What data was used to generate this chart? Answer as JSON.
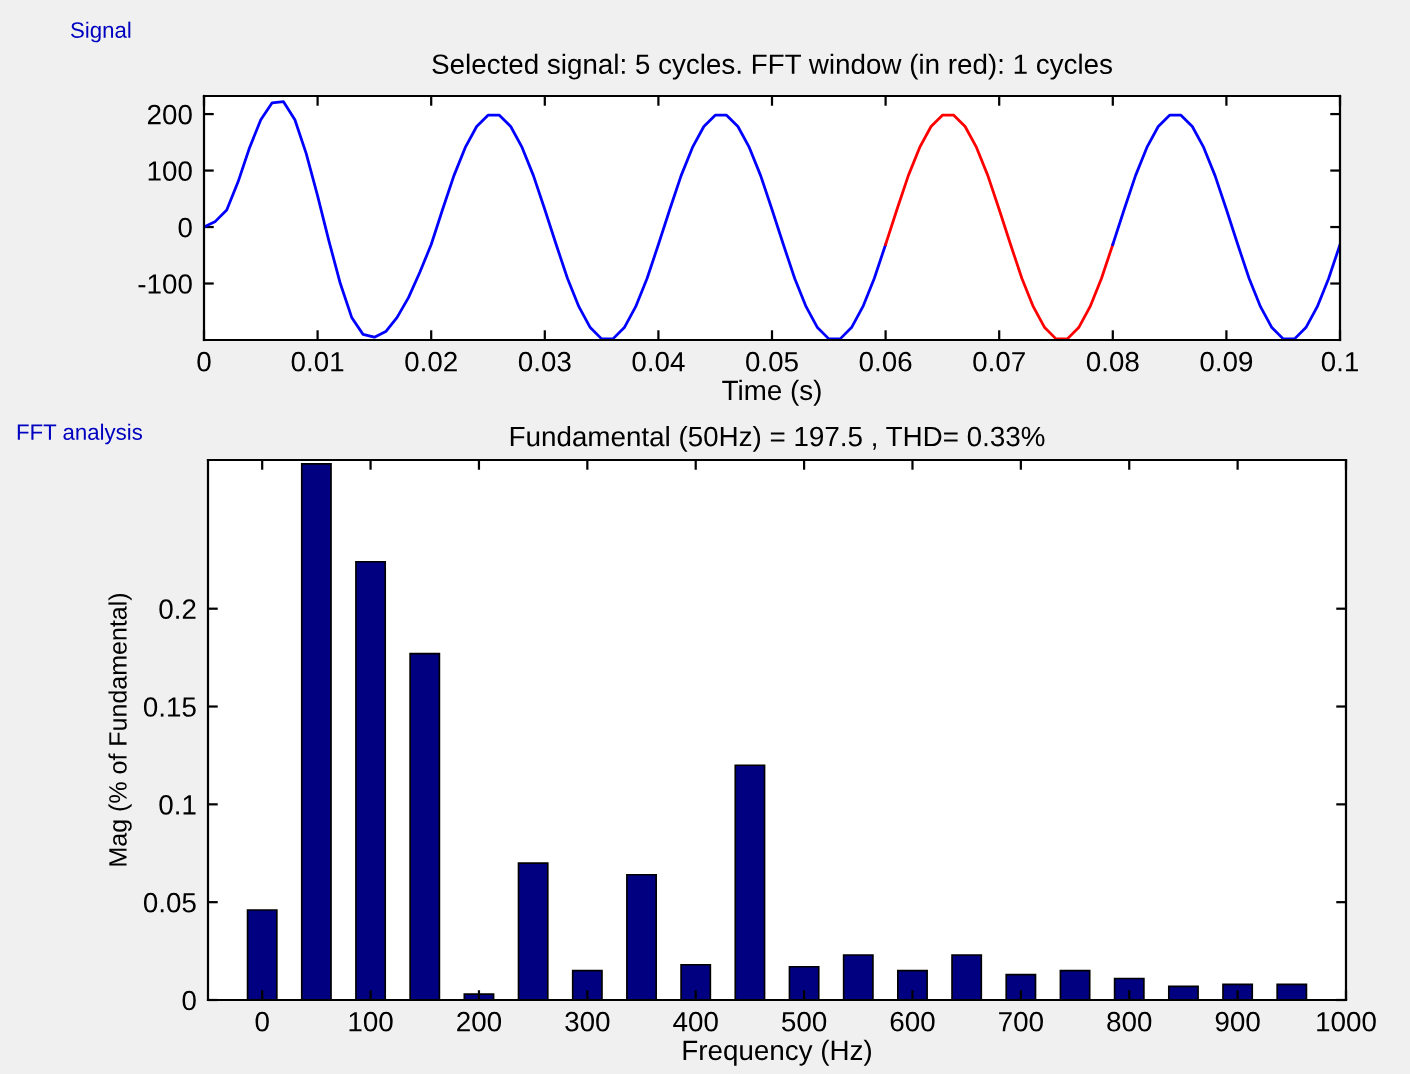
{
  "chart_data": [
    {
      "type": "line",
      "title": "Selected signal: 5 cycles. FFT window (in red): 1 cycles",
      "xlabel": "Time (s)",
      "annotations": [
        "Signal"
      ],
      "xlim": [
        0,
        0.1
      ],
      "ylim": [
        -200,
        232
      ],
      "xticks": [
        0,
        0.01,
        0.02,
        0.03,
        0.04,
        0.05,
        0.06,
        0.07,
        0.08,
        0.09,
        0.1
      ],
      "yticks": [
        -100,
        0,
        100,
        200
      ],
      "grid": false,
      "legend": false,
      "series": [
        {
          "color": "#0000ff",
          "x": [
            0,
            0.001,
            0.002,
            0.003,
            0.004,
            0.005,
            0.006,
            0.007,
            0.008,
            0.009,
            0.01,
            0.011,
            0.012,
            0.013,
            0.014,
            0.015,
            0.016,
            0.017,
            0.018,
            0.019,
            0.02,
            0.021,
            0.022,
            0.023,
            0.024,
            0.025,
            0.026,
            0.027,
            0.028,
            0.029,
            0.03,
            0.031,
            0.032,
            0.033,
            0.034,
            0.035,
            0.036,
            0.037,
            0.038,
            0.039,
            0.04,
            0.041,
            0.042,
            0.043,
            0.044,
            0.045,
            0.046,
            0.047,
            0.048,
            0.049,
            0.05,
            0.051,
            0.052,
            0.053,
            0.054,
            0.055,
            0.056,
            0.057,
            0.058,
            0.059,
            0.06
          ],
          "values": [
            0,
            10,
            30,
            80,
            140,
            190,
            220,
            222,
            190,
            130,
            55,
            -25,
            -100,
            -160,
            -190,
            -195,
            -185,
            -160,
            -125,
            -80,
            -31,
            31,
            91,
            141,
            178,
            198,
            198,
            178,
            141,
            91,
            31,
            -31,
            -91,
            -141,
            -178,
            -198,
            -198,
            -178,
            -141,
            -91,
            -31,
            31,
            91,
            141,
            178,
            198,
            198,
            178,
            141,
            91,
            31,
            -31,
            -91,
            -141,
            -178,
            -198,
            -198,
            -178,
            -141,
            -91,
            -31
          ]
        },
        {
          "color": "#ff0000",
          "x": [
            0.06,
            0.061,
            0.062,
            0.063,
            0.064,
            0.065,
            0.066,
            0.067,
            0.068,
            0.069,
            0.07,
            0.071,
            0.072,
            0.073,
            0.074,
            0.075,
            0.076,
            0.077,
            0.078,
            0.079,
            0.08
          ],
          "values": [
            -31,
            31,
            91,
            141,
            178,
            198,
            198,
            178,
            141,
            91,
            31,
            -31,
            -91,
            -141,
            -178,
            -198,
            -198,
            -178,
            -141,
            -91,
            -31
          ]
        },
        {
          "color": "#0000ff",
          "x": [
            0.08,
            0.081,
            0.082,
            0.083,
            0.084,
            0.085,
            0.086,
            0.087,
            0.088,
            0.089,
            0.09,
            0.091,
            0.092,
            0.093,
            0.094,
            0.095,
            0.096,
            0.097,
            0.098,
            0.099,
            0.1
          ],
          "values": [
            -31,
            31,
            91,
            141,
            178,
            198,
            198,
            178,
            141,
            91,
            31,
            -31,
            -91,
            -141,
            -178,
            -198,
            -198,
            -178,
            -141,
            -91,
            -31
          ]
        }
      ]
    },
    {
      "type": "bar",
      "title": "Fundamental (50Hz) = 197.5 , THD= 0.33%",
      "xlabel": "Frequency (Hz)",
      "ylabel": "Mag (% of Fundamental)",
      "annotations": [
        "FFT analysis"
      ],
      "x": [
        0,
        50,
        100,
        150,
        200,
        250,
        300,
        350,
        400,
        450,
        500,
        550,
        600,
        650,
        700,
        750,
        800,
        850,
        900,
        950
      ],
      "values": [
        0.046,
        0.274,
        0.224,
        0.177,
        0.003,
        0.07,
        0.015,
        0.064,
        0.018,
        0.12,
        0.017,
        0.023,
        0.015,
        0.023,
        0.013,
        0.015,
        0.011,
        0.007,
        0.008,
        0.008
      ],
      "color": "#000080",
      "xlim": [
        -50,
        1000
      ],
      "ylim": [
        0,
        0.276
      ],
      "xticks": [
        0,
        100,
        200,
        300,
        400,
        500,
        600,
        700,
        800,
        900,
        1000
      ],
      "yticks": [
        0,
        0.05,
        0.1,
        0.15,
        0.2
      ],
      "grid": false,
      "legend": false
    }
  ]
}
